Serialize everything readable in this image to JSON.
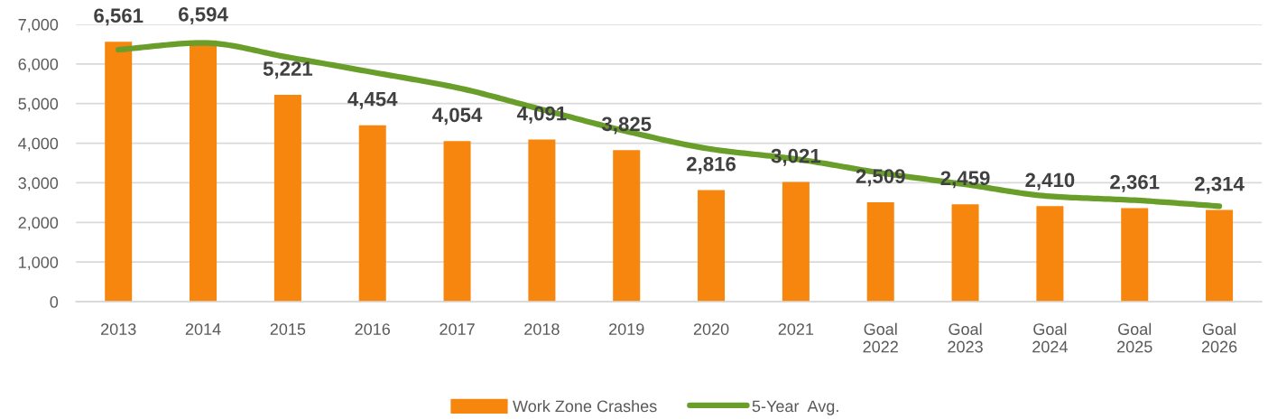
{
  "chart_data": {
    "type": "bar",
    "categories": [
      "2013",
      "2014",
      "2015",
      "2016",
      "2017",
      "2018",
      "2019",
      "2020",
      "2021",
      "Goal\n2022",
      "Goal\n2023",
      "Goal\n2024",
      "Goal\n2025",
      "Goal\n2026"
    ],
    "series": [
      {
        "name": "Work Zone Crashes",
        "color": "#f7860f",
        "values": [
          6561,
          6594,
          5221,
          4454,
          4054,
          4091,
          3825,
          2816,
          3021,
          2509,
          2459,
          2410,
          2361,
          2314
        ],
        "value_labels": [
          "6,561",
          "6,594",
          "5,221",
          "4,454",
          "4,054",
          "4,091",
          "3,825",
          "2,816",
          "3,021",
          "2,509",
          "2,459",
          "2,410",
          "2,361",
          "2,314"
        ]
      },
      {
        "name": "5-Year  Avg.",
        "type": "line",
        "color": "#6a9e2a",
        "marker": "none",
        "line_style": "solid",
        "values": [
          6360,
          6530,
          6170,
          5790,
          5400,
          4850,
          4300,
          3850,
          3600,
          3250,
          2960,
          2660,
          2560,
          2410
        ]
      }
    ],
    "ylim": [
      0,
      7000
    ],
    "yticks": [
      {
        "value": 0,
        "label": "0"
      },
      {
        "value": 1000,
        "label": "1,000"
      },
      {
        "value": 2000,
        "label": "2,000"
      },
      {
        "value": 3000,
        "label": "3,000"
      },
      {
        "value": 4000,
        "label": "4,000"
      },
      {
        "value": 5000,
        "label": "5,000"
      },
      {
        "value": 6000,
        "label": "6,000"
      },
      {
        "value": 7000,
        "label": "7,000"
      }
    ],
    "grid": "y",
    "legend": "bottom"
  }
}
